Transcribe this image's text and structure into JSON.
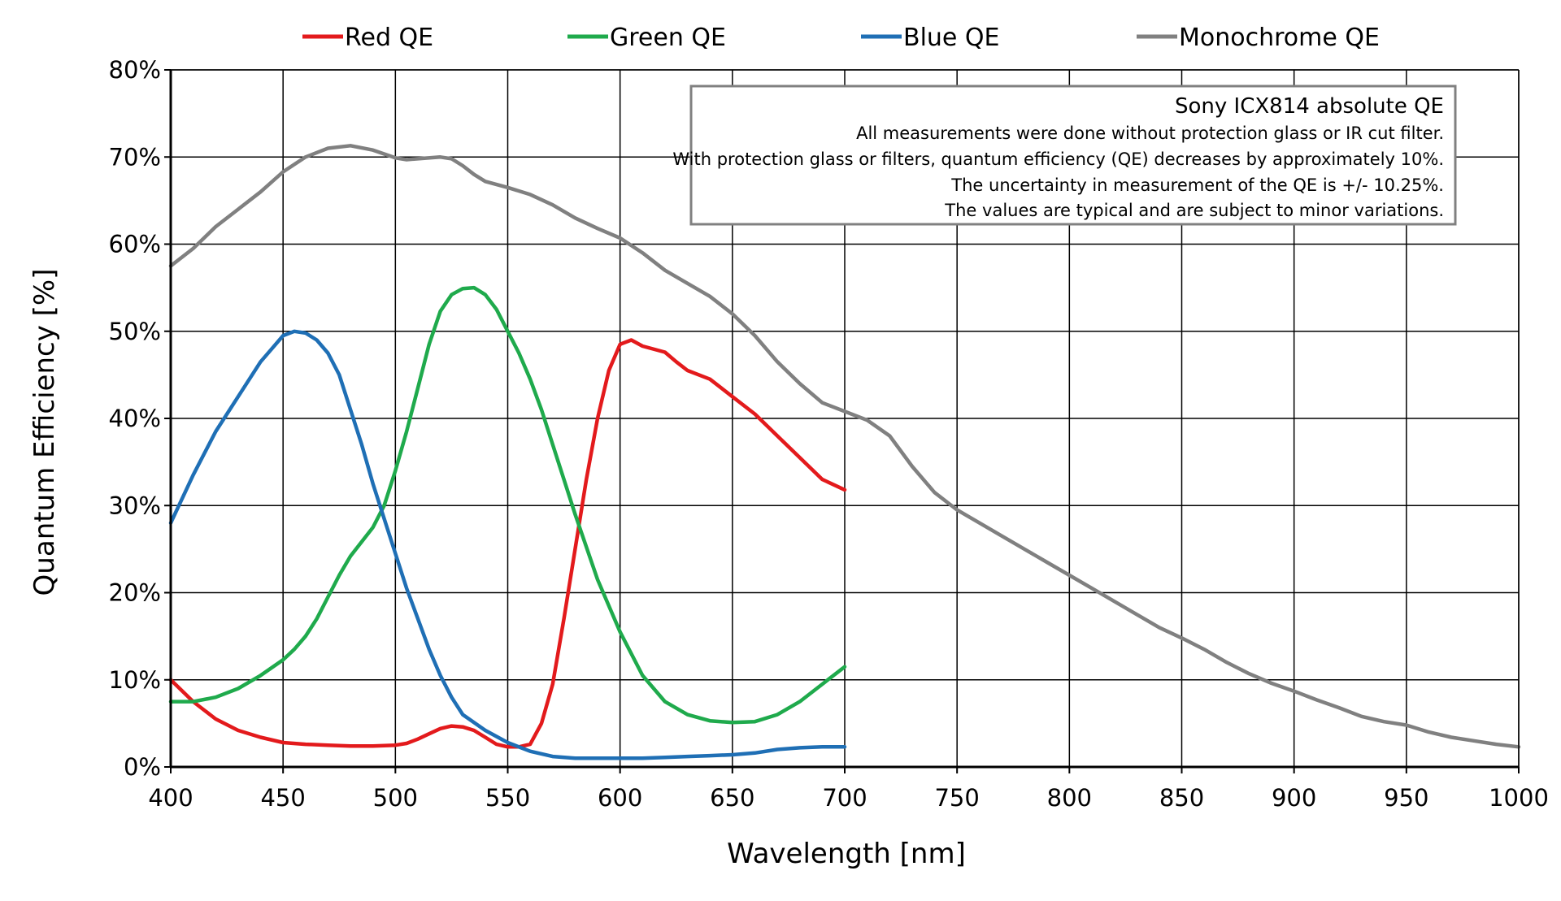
{
  "chart_data": {
    "type": "line",
    "title": "",
    "xlabel": "Wavelength [nm]",
    "ylabel": "Quantum Efficiency [%]",
    "xlim": [
      400,
      1000
    ],
    "ylim": [
      0,
      80
    ],
    "x_ticks": [
      400,
      450,
      500,
      550,
      600,
      650,
      700,
      750,
      800,
      850,
      900,
      950,
      1000
    ],
    "y_ticks": [
      0,
      10,
      20,
      30,
      40,
      50,
      60,
      70,
      80
    ],
    "y_tick_suffix": "%",
    "grid": true,
    "legend_position": "top",
    "annotation": {
      "title": "Sony ICX814 absolute QE",
      "lines": [
        "All measurements were done without protection glass or IR cut filter.",
        "With protection glass or filters, quantum efficiency (QE) decreases by approximately 10%.",
        "The uncertainty in measurement of the QE is +/- 10.25%.",
        "The values are typical and are subject to minor variations."
      ]
    },
    "series": [
      {
        "name": "Red QE",
        "color": "#e31a1c",
        "points": [
          [
            400,
            10.0
          ],
          [
            410,
            7.5
          ],
          [
            420,
            5.5
          ],
          [
            430,
            4.2
          ],
          [
            440,
            3.4
          ],
          [
            450,
            2.8
          ],
          [
            460,
            2.6
          ],
          [
            470,
            2.5
          ],
          [
            480,
            2.4
          ],
          [
            490,
            2.4
          ],
          [
            500,
            2.5
          ],
          [
            505,
            2.7
          ],
          [
            510,
            3.2
          ],
          [
            515,
            3.8
          ],
          [
            520,
            4.4
          ],
          [
            525,
            4.7
          ],
          [
            530,
            4.6
          ],
          [
            535,
            4.2
          ],
          [
            540,
            3.4
          ],
          [
            545,
            2.6
          ],
          [
            550,
            2.3
          ],
          [
            555,
            2.3
          ],
          [
            560,
            2.6
          ],
          [
            565,
            5.0
          ],
          [
            570,
            9.5
          ],
          [
            575,
            17.0
          ],
          [
            580,
            25.0
          ],
          [
            585,
            33.0
          ],
          [
            590,
            40.0
          ],
          [
            595,
            45.5
          ],
          [
            600,
            48.5
          ],
          [
            605,
            49.0
          ],
          [
            610,
            48.3
          ],
          [
            620,
            47.6
          ],
          [
            625,
            46.5
          ],
          [
            630,
            45.5
          ],
          [
            640,
            44.5
          ],
          [
            650,
            42.5
          ],
          [
            660,
            40.5
          ],
          [
            670,
            38.0
          ],
          [
            680,
            35.5
          ],
          [
            690,
            33.0
          ],
          [
            700,
            31.8
          ]
        ]
      },
      {
        "name": "Green QE",
        "color": "#1faa4c",
        "points": [
          [
            400,
            7.5
          ],
          [
            410,
            7.5
          ],
          [
            420,
            8.0
          ],
          [
            430,
            9.0
          ],
          [
            440,
            10.5
          ],
          [
            450,
            12.3
          ],
          [
            455,
            13.5
          ],
          [
            460,
            15.0
          ],
          [
            465,
            17.0
          ],
          [
            470,
            19.5
          ],
          [
            475,
            22.0
          ],
          [
            480,
            24.2
          ],
          [
            490,
            27.5
          ],
          [
            495,
            30.0
          ],
          [
            500,
            34.0
          ],
          [
            505,
            38.5
          ],
          [
            510,
            43.5
          ],
          [
            515,
            48.5
          ],
          [
            520,
            52.3
          ],
          [
            525,
            54.2
          ],
          [
            530,
            54.9
          ],
          [
            535,
            55.0
          ],
          [
            540,
            54.2
          ],
          [
            545,
            52.5
          ],
          [
            550,
            50.0
          ],
          [
            555,
            47.5
          ],
          [
            560,
            44.5
          ],
          [
            565,
            41.0
          ],
          [
            570,
            37.0
          ],
          [
            575,
            33.0
          ],
          [
            580,
            29.0
          ],
          [
            590,
            21.5
          ],
          [
            600,
            15.5
          ],
          [
            610,
            10.5
          ],
          [
            620,
            7.5
          ],
          [
            630,
            6.0
          ],
          [
            640,
            5.3
          ],
          [
            650,
            5.1
          ],
          [
            660,
            5.2
          ],
          [
            670,
            6.0
          ],
          [
            680,
            7.5
          ],
          [
            690,
            9.5
          ],
          [
            700,
            11.5
          ]
        ]
      },
      {
        "name": "Blue QE",
        "color": "#1f6fb5",
        "points": [
          [
            400,
            28.0
          ],
          [
            410,
            33.5
          ],
          [
            420,
            38.5
          ],
          [
            430,
            42.5
          ],
          [
            440,
            46.5
          ],
          [
            445,
            48.0
          ],
          [
            450,
            49.5
          ],
          [
            455,
            50.0
          ],
          [
            460,
            49.8
          ],
          [
            465,
            49.0
          ],
          [
            470,
            47.5
          ],
          [
            475,
            45.0
          ],
          [
            480,
            41.0
          ],
          [
            485,
            37.0
          ],
          [
            490,
            32.5
          ],
          [
            495,
            28.5
          ],
          [
            500,
            24.5
          ],
          [
            505,
            20.5
          ],
          [
            510,
            17.0
          ],
          [
            515,
            13.5
          ],
          [
            520,
            10.5
          ],
          [
            525,
            8.0
          ],
          [
            530,
            6.0
          ],
          [
            540,
            4.2
          ],
          [
            550,
            2.8
          ],
          [
            560,
            1.8
          ],
          [
            570,
            1.2
          ],
          [
            580,
            1.0
          ],
          [
            590,
            1.0
          ],
          [
            600,
            1.0
          ],
          [
            610,
            1.0
          ],
          [
            620,
            1.1
          ],
          [
            630,
            1.2
          ],
          [
            640,
            1.3
          ],
          [
            650,
            1.4
          ],
          [
            660,
            1.6
          ],
          [
            670,
            2.0
          ],
          [
            680,
            2.2
          ],
          [
            690,
            2.3
          ],
          [
            700,
            2.3
          ]
        ]
      },
      {
        "name": "Monochrome QE",
        "color": "#808080",
        "points": [
          [
            400,
            57.5
          ],
          [
            410,
            59.5
          ],
          [
            420,
            62.0
          ],
          [
            430,
            64.0
          ],
          [
            440,
            66.0
          ],
          [
            450,
            68.3
          ],
          [
            460,
            70.0
          ],
          [
            470,
            71.0
          ],
          [
            480,
            71.3
          ],
          [
            490,
            70.8
          ],
          [
            500,
            69.9
          ],
          [
            505,
            69.7
          ],
          [
            510,
            69.8
          ],
          [
            520,
            70.0
          ],
          [
            525,
            69.8
          ],
          [
            530,
            69.0
          ],
          [
            535,
            68.0
          ],
          [
            540,
            67.2
          ],
          [
            550,
            66.5
          ],
          [
            560,
            65.7
          ],
          [
            570,
            64.5
          ],
          [
            580,
            63.0
          ],
          [
            590,
            61.8
          ],
          [
            600,
            60.7
          ],
          [
            610,
            59.0
          ],
          [
            620,
            57.0
          ],
          [
            630,
            55.5
          ],
          [
            640,
            54.0
          ],
          [
            650,
            52.0
          ],
          [
            660,
            49.5
          ],
          [
            670,
            46.5
          ],
          [
            680,
            44.0
          ],
          [
            690,
            41.8
          ],
          [
            700,
            40.8
          ],
          [
            710,
            39.8
          ],
          [
            720,
            38.0
          ],
          [
            730,
            34.5
          ],
          [
            740,
            31.5
          ],
          [
            750,
            29.5
          ],
          [
            760,
            28.0
          ],
          [
            770,
            26.5
          ],
          [
            780,
            25.0
          ],
          [
            790,
            23.5
          ],
          [
            800,
            22.0
          ],
          [
            810,
            20.5
          ],
          [
            820,
            19.0
          ],
          [
            830,
            17.5
          ],
          [
            840,
            16.0
          ],
          [
            850,
            14.8
          ],
          [
            860,
            13.5
          ],
          [
            870,
            12.0
          ],
          [
            880,
            10.7
          ],
          [
            890,
            9.6
          ],
          [
            900,
            8.7
          ],
          [
            910,
            7.7
          ],
          [
            920,
            6.8
          ],
          [
            930,
            5.8
          ],
          [
            940,
            5.2
          ],
          [
            950,
            4.8
          ],
          [
            960,
            4.0
          ],
          [
            970,
            3.4
          ],
          [
            980,
            3.0
          ],
          [
            990,
            2.6
          ],
          [
            1000,
            2.3
          ]
        ]
      }
    ]
  }
}
